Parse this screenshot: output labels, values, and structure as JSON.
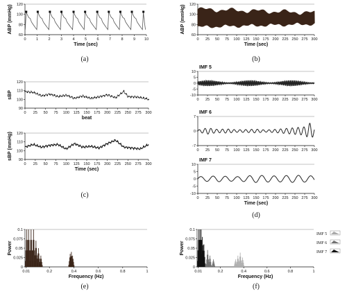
{
  "chart_data": [
    {
      "id": "a",
      "type": "line",
      "panel_label": "(a)",
      "xlabel": "Time (sec)",
      "ylabel": "ABP (mmHg)",
      "xlim": [
        0,
        10
      ],
      "ylim": [
        60,
        120
      ],
      "xticks": [
        0,
        1,
        2,
        3,
        4,
        5,
        6,
        7,
        8,
        9,
        10
      ],
      "yticks": [
        60,
        80,
        100,
        120
      ],
      "series": [
        {
          "color": "#555555",
          "markers": "systolic peaks marked with black squares",
          "beat_peak_times": [
            0.1,
            1.05,
            2.05,
            3.0,
            4.0,
            4.95,
            5.95,
            6.9,
            7.85,
            8.8,
            9.75
          ],
          "systolic": 105,
          "diastolic": 70
        }
      ]
    },
    {
      "id": "b",
      "type": "area",
      "panel_label": "(b)",
      "xlabel": "Time (sec)",
      "ylabel": "ABP (mmHg)",
      "xlim": [
        0,
        300
      ],
      "ylim": [
        60,
        120
      ],
      "xticks": [
        0,
        25,
        50,
        75,
        100,
        125,
        150,
        175,
        200,
        225,
        250,
        275,
        300
      ],
      "yticks": [
        60,
        80,
        100,
        120
      ],
      "series": [
        {
          "color": "#3a2418",
          "envelope_upper": [
            110,
            103
          ],
          "envelope_lower": [
            75,
            81
          ]
        }
      ]
    },
    {
      "id": "c1",
      "type": "line",
      "panel_label": "",
      "xlabel": "beat",
      "ylabel": "sBP",
      "xlim": [
        0,
        300
      ],
      "ylim": [
        90,
        120
      ],
      "xticks": [
        0,
        25,
        50,
        75,
        100,
        125,
        150,
        175,
        200,
        225,
        250,
        275,
        300
      ],
      "yticks": [
        90,
        100,
        110,
        120
      ],
      "series": [
        {
          "color": "#333333",
          "x": [
            0,
            20,
            40,
            60,
            80,
            100,
            120,
            140,
            160,
            180,
            200,
            220,
            240,
            250,
            270,
            290,
            300
          ],
          "values": [
            109,
            108,
            104,
            106,
            103,
            105,
            101,
            104,
            101,
            103,
            105,
            102,
            109,
            103,
            103,
            101,
            100
          ]
        }
      ]
    },
    {
      "id": "c2",
      "type": "line",
      "panel_label": "(c)",
      "xlabel": "Time (sec)",
      "ylabel": "sBP (mmHg)",
      "xlim": [
        0,
        300
      ],
      "ylim": [
        90,
        120
      ],
      "xticks": [
        0,
        25,
        50,
        75,
        100,
        125,
        150,
        175,
        200,
        225,
        250,
        275,
        300
      ],
      "yticks": [
        90,
        100,
        110,
        120
      ],
      "series": [
        {
          "color": "#111111",
          "x": [
            0,
            20,
            40,
            60,
            80,
            100,
            120,
            140,
            160,
            180,
            200,
            220,
            240,
            260,
            280,
            300
          ],
          "values": [
            104,
            107,
            104,
            106,
            107,
            102,
            108,
            104,
            105,
            103,
            108,
            112,
            104,
            103,
            102,
            107
          ]
        }
      ]
    },
    {
      "id": "d1",
      "type": "line",
      "panel_label": "",
      "title": "IMF 5",
      "xlabel": "",
      "ylabel": "",
      "xlim": [
        0,
        300
      ],
      "ylim": [
        -10,
        10
      ],
      "xticks": [
        0,
        25,
        50,
        75,
        100,
        125,
        150,
        175,
        200,
        225,
        250,
        275,
        300
      ],
      "yticks": [
        -10,
        -5,
        0,
        5,
        10
      ],
      "series": [
        {
          "color": "#222222",
          "amplitude": 2.5,
          "oscillation": "fast"
        }
      ]
    },
    {
      "id": "d2",
      "type": "line",
      "panel_label": "",
      "title": "IMF 6",
      "xlabel": "",
      "ylabel": "",
      "xlim": [
        0,
        300
      ],
      "ylim": [
        -7,
        7
      ],
      "xticks": [
        0,
        25,
        50,
        75,
        100,
        125,
        150,
        175,
        200,
        225,
        250,
        275,
        300
      ],
      "yticks": [
        -7,
        0,
        7
      ],
      "series": [
        {
          "color": "#222222",
          "x": [
            0,
            25,
            50,
            75,
            100,
            125,
            150,
            175,
            200,
            225,
            250,
            275,
            290,
            300
          ],
          "amplitudes": [
            0.5,
            1.5,
            0.8,
            1.0,
            0.6,
            0.7,
            0.9,
            0.5,
            0.8,
            1.2,
            1.6,
            2.0,
            4.0,
            2.0
          ]
        }
      ]
    },
    {
      "id": "d3",
      "type": "line",
      "panel_label": "(d)",
      "title": "IMF 7",
      "xlabel": "Time (sec)",
      "ylabel": "",
      "xlim": [
        0,
        300
      ],
      "ylim": [
        -10,
        10
      ],
      "xticks": [
        0,
        25,
        50,
        75,
        100,
        125,
        150,
        175,
        200,
        225,
        250,
        275,
        300
      ],
      "yticks": [
        -10,
        -5,
        0,
        5,
        10
      ],
      "series": [
        {
          "color": "#222222",
          "x": [
            0,
            50,
            100,
            150,
            200,
            250,
            300
          ],
          "amplitudes": [
            1.5,
            2.0,
            1.5,
            2.5,
            2.0,
            2.5,
            2.0
          ]
        }
      ]
    },
    {
      "id": "e",
      "type": "area",
      "panel_label": "(e)",
      "xlabel": "Frequency (Hz)",
      "ylabel": "Power",
      "xlim": [
        0,
        1
      ],
      "ylim": [
        0,
        0.1
      ],
      "xticks": [
        0.01,
        0.2,
        0.4,
        0.6,
        0.8,
        1
      ],
      "yticks": [
        0,
        0.025,
        0.05,
        0.075,
        0.1
      ],
      "series": [
        {
          "color": "#3a2418",
          "peaks": [
            [
              0.015,
              0.1
            ],
            [
              0.03,
              0.1
            ],
            [
              0.05,
              0.1
            ],
            [
              0.07,
              0.1
            ],
            [
              0.09,
              0.07
            ],
            [
              0.11,
              0.05
            ],
            [
              0.13,
              0.03
            ],
            [
              0.37,
              0.035
            ],
            [
              0.38,
              0.04
            ],
            [
              0.39,
              0.03
            ]
          ]
        }
      ]
    },
    {
      "id": "f",
      "type": "area",
      "panel_label": "(f)",
      "xlabel": "Frequency (Hz)",
      "ylabel": "Power",
      "xlim": [
        0,
        1
      ],
      "ylim": [
        0,
        0.1
      ],
      "xticks": [
        0.01,
        0.2,
        0.4,
        0.6,
        0.8,
        1
      ],
      "yticks": [
        0,
        0.025,
        0.05,
        0.075,
        0.1
      ],
      "legend": {
        "placement": "right",
        "entries": [
          {
            "label": "IMF 5",
            "color": "#a8a8a8"
          },
          {
            "label": "IMF 6",
            "color": "#707070"
          },
          {
            "label": "IMF 7",
            "color": "#111111"
          }
        ]
      },
      "series": [
        {
          "name": "IMF 5",
          "color": "#b0b0b0",
          "peaks": [
            [
              0.33,
              0.02
            ],
            [
              0.35,
              0.03
            ],
            [
              0.37,
              0.038
            ],
            [
              0.39,
              0.025
            ]
          ]
        },
        {
          "name": "IMF 6",
          "color": "#707070",
          "peaks": [
            [
              0.06,
              0.06
            ],
            [
              0.09,
              0.045
            ],
            [
              0.11,
              0.03
            ],
            [
              0.14,
              0.02
            ]
          ]
        },
        {
          "name": "IMF 7",
          "color": "#111111",
          "peaks": [
            [
              0.015,
              0.1
            ],
            [
              0.025,
              0.1
            ],
            [
              0.035,
              0.1
            ],
            [
              0.045,
              0.08
            ],
            [
              0.055,
              0.06
            ]
          ]
        }
      ]
    }
  ]
}
